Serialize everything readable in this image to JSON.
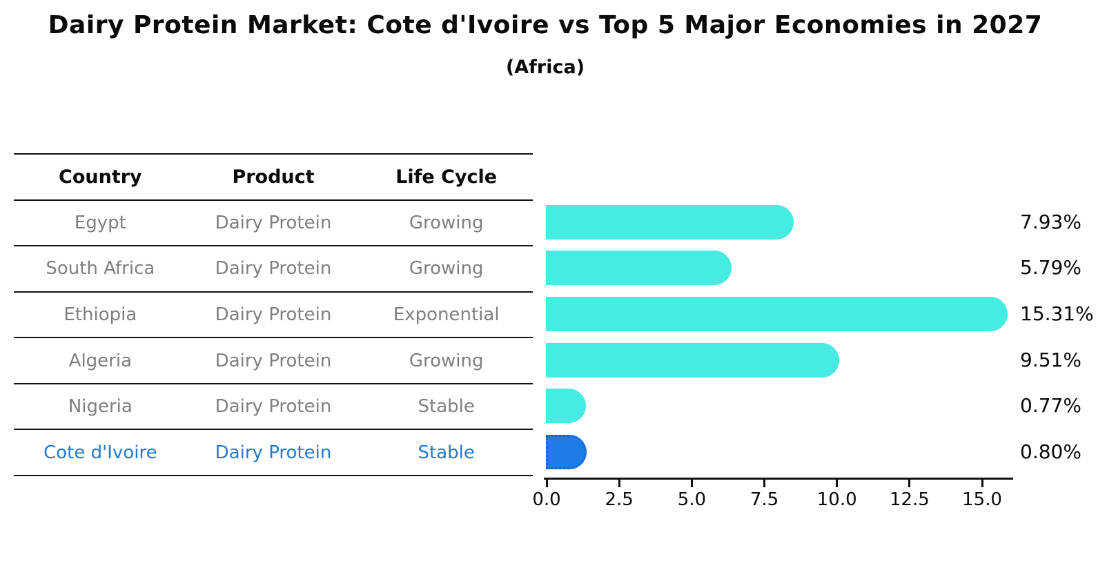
{
  "title": "Dairy Protein Market: Cote d'Ivoire vs Top 5 Major Economies in 2027",
  "subtitle": "(Africa)",
  "table": {
    "headers": [
      "Country",
      "Product",
      "Life Cycle"
    ],
    "rows": [
      {
        "country": "Egypt",
        "product": "Dairy Protein",
        "life_cycle": "Growing",
        "highlight": false
      },
      {
        "country": "South Africa",
        "product": "Dairy Protein",
        "life_cycle": "Growing",
        "highlight": false
      },
      {
        "country": "Ethiopia",
        "product": "Dairy Protein",
        "life_cycle": "Exponential",
        "highlight": false
      },
      {
        "country": "Algeria",
        "product": "Dairy Protein",
        "life_cycle": "Growing",
        "highlight": false
      },
      {
        "country": "Nigeria",
        "product": "Dairy Protein",
        "life_cycle": "Stable",
        "highlight": false
      },
      {
        "country": "Cote d'Ivoire",
        "product": "Dairy Protein",
        "life_cycle": "Stable",
        "highlight": true
      }
    ]
  },
  "chart_data": {
    "type": "bar",
    "orientation": "horizontal",
    "title": "Dairy Protein Market: Cote d'Ivoire vs Top 5 Major Economies in 2027",
    "subtitle": "(Africa)",
    "categories": [
      "Egypt",
      "South Africa",
      "Ethiopia",
      "Algeria",
      "Nigeria",
      "Cote d'Ivoire"
    ],
    "values": [
      7.93,
      5.79,
      15.31,
      9.51,
      0.77,
      0.8
    ],
    "value_labels": [
      "7.93%",
      "5.79%",
      "15.31%",
      "9.51%",
      "0.77%",
      "0.80%"
    ],
    "x_tick_labels": [
      "0.0",
      "2.5",
      "5.0",
      "7.5",
      "10.0",
      "12.5",
      "15.0"
    ],
    "xlim": [
      0,
      16
    ],
    "xlabel": "",
    "ylabel": "",
    "unit": "%",
    "grid": false,
    "legend": "none",
    "highlight_index": 5,
    "bar_color": "#46EBE1",
    "highlight_bar_color": "#1E7BE8",
    "highlight_border_color": "#1565D0"
  },
  "colors": {
    "background": "#FFFFFF",
    "text": "#0A0A0A",
    "table_row_text": "#7F7F7F",
    "highlight_text": "#2579CC",
    "line": "#111111"
  }
}
